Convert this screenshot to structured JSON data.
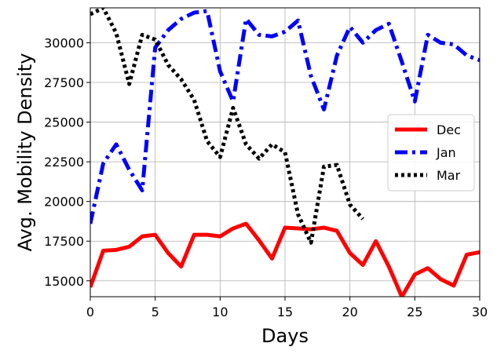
{
  "chart_data": {
    "type": "line",
    "xlabel": "Days",
    "ylabel": "Avg. Mobility Density",
    "xlim": [
      0,
      30
    ],
    "ylim": [
      14000,
      32200
    ],
    "xticks": [
      0,
      5,
      10,
      15,
      20,
      25,
      30
    ],
    "yticks": [
      15000,
      17500,
      20000,
      22500,
      25000,
      27500,
      30000
    ],
    "grid": true,
    "legend_position": "center-right",
    "series": [
      {
        "name": "Dec",
        "color": "#ff0000",
        "style": "solid",
        "x": [
          0,
          1,
          2,
          3,
          4,
          5,
          6,
          7,
          8,
          9,
          10,
          11,
          12,
          13,
          14,
          15,
          16,
          17,
          18,
          19,
          20,
          21,
          22,
          23,
          24,
          25,
          26,
          27,
          28,
          29,
          30
        ],
        "y": [
          14600,
          16900,
          16950,
          17150,
          17800,
          17900,
          16750,
          15900,
          17900,
          17900,
          17800,
          18300,
          18600,
          17550,
          16400,
          18350,
          18300,
          18250,
          18350,
          18150,
          16750,
          16000,
          17500,
          15900,
          14000,
          15400,
          15800,
          15100,
          14700,
          16650,
          16800
        ]
      },
      {
        "name": "Jan",
        "color": "#0000ff",
        "style": "dashdot",
        "x": [
          0,
          1,
          2,
          3,
          4,
          5,
          6,
          7,
          8,
          9,
          10,
          11,
          12,
          13,
          14,
          15,
          16,
          17,
          18,
          19,
          20,
          21,
          22,
          23,
          24,
          25,
          26,
          27,
          28,
          29,
          30
        ],
        "y": [
          18600,
          22400,
          23600,
          22000,
          20700,
          29700,
          30800,
          31500,
          31900,
          32000,
          28200,
          26300,
          31500,
          30500,
          30400,
          30700,
          31400,
          27900,
          25800,
          29200,
          31000,
          30000,
          30800,
          31200,
          28800,
          26300,
          30500,
          30000,
          29900,
          29200,
          28900
        ]
      },
      {
        "name": "Mar",
        "color": "#000000",
        "style": "dotted",
        "x": [
          0,
          1,
          2,
          3,
          4,
          5,
          6,
          7,
          8,
          9,
          10,
          11,
          12,
          13,
          14,
          15,
          16,
          17,
          18,
          19,
          20,
          21
        ],
        "y": [
          31800,
          32200,
          30600,
          27400,
          30500,
          30200,
          28600,
          27700,
          26400,
          23800,
          22800,
          25900,
          23600,
          22700,
          23600,
          23100,
          19200,
          17400,
          22200,
          22300,
          19800,
          18900
        ]
      }
    ]
  }
}
